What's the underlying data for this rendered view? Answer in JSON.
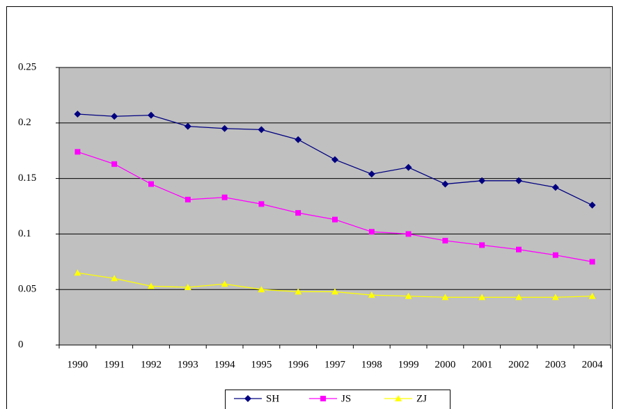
{
  "chart_data": {
    "type": "line",
    "categories": [
      "1990",
      "1991",
      "1992",
      "1993",
      "1994",
      "1995",
      "1996",
      "1997",
      "1998",
      "1999",
      "2000",
      "2001",
      "2002",
      "2003",
      "2004"
    ],
    "series": [
      {
        "name": "SH",
        "color": "#000080",
        "marker": "diamond",
        "values": [
          0.208,
          0.206,
          0.207,
          0.197,
          0.195,
          0.194,
          0.185,
          0.167,
          0.154,
          0.16,
          0.145,
          0.148,
          0.148,
          0.142,
          0.126
        ]
      },
      {
        "name": "JS",
        "color": "#ff00ff",
        "marker": "square",
        "values": [
          0.174,
          0.163,
          0.145,
          0.131,
          0.133,
          0.127,
          0.119,
          0.113,
          0.102,
          0.1,
          0.094,
          0.09,
          0.086,
          0.081,
          0.075
        ]
      },
      {
        "name": "ZJ",
        "color": "#ffff00",
        "marker": "triangle",
        "values": [
          0.065,
          0.06,
          0.053,
          0.052,
          0.055,
          0.05,
          0.048,
          0.048,
          0.045,
          0.044,
          0.043,
          0.043,
          0.043,
          0.043,
          0.044
        ]
      }
    ],
    "ylim": [
      0,
      0.25
    ],
    "yticks": [
      0,
      0.05,
      0.1,
      0.15,
      0.2,
      0.25
    ],
    "grid": true,
    "plot_background": "#c0c0c0",
    "legend": "bottom"
  }
}
